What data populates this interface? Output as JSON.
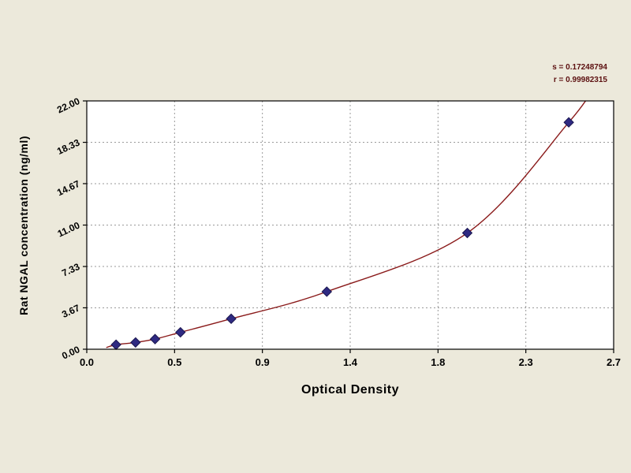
{
  "chart_data": {
    "type": "scatter",
    "title": "",
    "xlabel": "Optical Density",
    "ylabel": "Rat NGAL concentration (ng/ml)",
    "xlim": [
      0.0,
      2.7
    ],
    "ylim": [
      0.0,
      22.0
    ],
    "grid": true,
    "legend_position": "none",
    "x_ticks": [
      0.0,
      0.45,
      0.9,
      1.35,
      1.8,
      2.25,
      2.7
    ],
    "x_tick_labels": [
      "0.0",
      "0.5",
      "0.9",
      "1.4",
      "1.8",
      "2.3",
      "2.7"
    ],
    "y_ticks": [
      0.0,
      3.67,
      7.33,
      11.0,
      14.67,
      18.33,
      22.0
    ],
    "y_tick_labels": [
      "0.00",
      "3.67",
      "7.33",
      "11.00",
      "14.67",
      "18.33",
      "22.00"
    ],
    "annotations": [
      "s = 0.17248794",
      "r = 0.99982315"
    ],
    "points": {
      "x": [
        0.15,
        0.25,
        0.35,
        0.48,
        0.74,
        1.23,
        1.95,
        2.47
      ],
      "y": [
        0.4,
        0.6,
        0.9,
        1.5,
        2.7,
        5.1,
        10.3,
        20.1
      ]
    },
    "fit_curve": {
      "x": [
        0.1,
        0.15,
        0.25,
        0.35,
        0.48,
        0.74,
        1.23,
        1.95,
        2.47,
        2.62
      ],
      "y": [
        0.15,
        0.4,
        0.6,
        0.9,
        1.5,
        2.7,
        5.1,
        10.3,
        20.1,
        23.8
      ]
    },
    "colors": {
      "background": "#ece9db",
      "plot_background": "#ffffff",
      "curve": "#8a1a1a",
      "marker": "#2f2a82",
      "marker_stroke": "#1a164f",
      "grid": "#9a9a9a",
      "axis": "#000000"
    }
  }
}
